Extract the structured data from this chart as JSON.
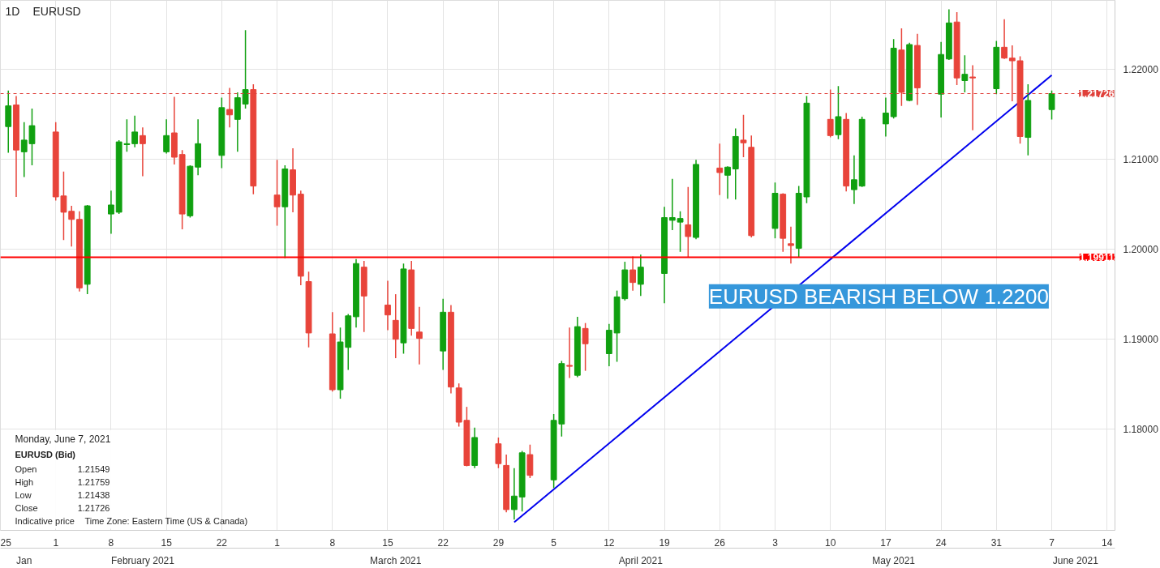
{
  "chart_data": {
    "type": "candlestick",
    "title": "EURUSD",
    "subtitle": "1D",
    "x": [
      "2021-01-26",
      "2021-01-27",
      "2021-01-28",
      "2021-01-29",
      "2021-02-01",
      "2021-02-02",
      "2021-02-03",
      "2021-02-04",
      "2021-02-05",
      "2021-02-08",
      "2021-02-09",
      "2021-02-10",
      "2021-02-11",
      "2021-02-12",
      "2021-02-15",
      "2021-02-16",
      "2021-02-17",
      "2021-02-18",
      "2021-02-19",
      "2021-02-22",
      "2021-02-23",
      "2021-02-24",
      "2021-02-25",
      "2021-02-26",
      "2021-03-01",
      "2021-03-02",
      "2021-03-03",
      "2021-03-04",
      "2021-03-05",
      "2021-03-08",
      "2021-03-09",
      "2021-03-10",
      "2021-03-11",
      "2021-03-12",
      "2021-03-15",
      "2021-03-16",
      "2021-03-17",
      "2021-03-18",
      "2021-03-19",
      "2021-03-22",
      "2021-03-23",
      "2021-03-24",
      "2021-03-25",
      "2021-03-26",
      "2021-03-29",
      "2021-03-30",
      "2021-03-31",
      "2021-04-01",
      "2021-04-02",
      "2021-04-05",
      "2021-04-06",
      "2021-04-07",
      "2021-04-08",
      "2021-04-09",
      "2021-04-12",
      "2021-04-13",
      "2021-04-14",
      "2021-04-15",
      "2021-04-16",
      "2021-04-19",
      "2021-04-20",
      "2021-04-21",
      "2021-04-22",
      "2021-04-23",
      "2021-04-26",
      "2021-04-27",
      "2021-04-28",
      "2021-04-29",
      "2021-04-30",
      "2021-05-03",
      "2021-05-04",
      "2021-05-05",
      "2021-05-06",
      "2021-05-07",
      "2021-05-10",
      "2021-05-11",
      "2021-05-12",
      "2021-05-13",
      "2021-05-14",
      "2021-05-17",
      "2021-05-18",
      "2021-05-19",
      "2021-05-20",
      "2021-05-21",
      "2021-05-24",
      "2021-05-25",
      "2021-05-26",
      "2021-05-27",
      "2021-05-28",
      "2021-05-31",
      "2021-06-01",
      "2021-06-02",
      "2021-06-03",
      "2021-06-04",
      "2021-06-07"
    ],
    "ohlc": [
      [
        1.2136,
        1.2176,
        1.2107,
        1.2159
      ],
      [
        1.216,
        1.217,
        1.2058,
        1.211
      ],
      [
        1.2108,
        1.2141,
        1.208,
        1.2121
      ],
      [
        1.2117,
        1.2156,
        1.2093,
        1.2137
      ],
      [
        1.213,
        1.2141,
        1.2054,
        1.2058
      ],
      [
        1.2059,
        1.2086,
        1.201,
        1.2041
      ],
      [
        1.2042,
        1.2048,
        1.2003,
        1.2033
      ],
      [
        1.2033,
        1.2042,
        1.1953,
        1.1957
      ],
      [
        1.1961,
        1.2049,
        1.195,
        1.2048
      ],
      [
        1.2039,
        1.2065,
        1.2017,
        1.2049
      ],
      [
        1.2041,
        1.2121,
        1.2039,
        1.2119
      ],
      [
        1.2116,
        1.2144,
        1.2108,
        1.2117
      ],
      [
        1.2117,
        1.2148,
        1.2113,
        1.213
      ],
      [
        1.2126,
        1.2135,
        1.2081,
        1.2117
      ],
      [
        1.2108,
        1.2144,
        1.2106,
        1.2126
      ],
      [
        1.2129,
        1.2169,
        1.2094,
        1.2102
      ],
      [
        1.2105,
        1.211,
        1.2022,
        1.2039
      ],
      [
        1.2037,
        1.2093,
        1.2035,
        1.2092
      ],
      [
        1.2091,
        1.2144,
        1.2082,
        1.2117
      ],
      [
        1.2104,
        1.2168,
        1.209,
        1.2157
      ],
      [
        1.2155,
        1.2179,
        1.2135,
        1.2149
      ],
      [
        1.2144,
        1.2174,
        1.2108,
        1.2168
      ],
      [
        1.2161,
        1.2243,
        1.2156,
        1.2177
      ],
      [
        1.2177,
        1.2183,
        1.2061,
        1.207
      ],
      [
        1.206,
        1.2099,
        1.2026,
        1.2047
      ],
      [
        1.2047,
        1.2093,
        1.199,
        1.2089
      ],
      [
        1.2088,
        1.2112,
        1.2041,
        1.206
      ],
      [
        1.2061,
        1.2065,
        1.196,
        1.197
      ],
      [
        1.1964,
        1.1975,
        1.1891,
        1.1907
      ],
      [
        1.1906,
        1.193,
        1.1842,
        1.1844
      ],
      [
        1.1844,
        1.1913,
        1.1834,
        1.1897
      ],
      [
        1.1891,
        1.1928,
        1.1866,
        1.1926
      ],
      [
        1.1925,
        1.1989,
        1.1913,
        1.1984
      ],
      [
        1.198,
        1.1987,
        1.1908,
        1.1948
      ],
      [
        1.1938,
        1.1965,
        1.191,
        1.1927
      ],
      [
        1.1921,
        1.195,
        1.1879,
        1.19
      ],
      [
        1.1896,
        1.1984,
        1.1884,
        1.1978
      ],
      [
        1.1977,
        1.1987,
        1.1904,
        1.1912
      ],
      [
        1.1908,
        1.1936,
        1.1872,
        1.1901
      ],
      [
        1.1887,
        1.1945,
        1.1866,
        1.193
      ],
      [
        1.193,
        1.1938,
        1.184,
        1.1847
      ],
      [
        1.1846,
        1.1851,
        1.1803,
        1.1808
      ],
      [
        1.181,
        1.1825,
        1.1759,
        1.176
      ],
      [
        1.176,
        1.1802,
        1.1757,
        1.1791
      ],
      [
        1.1784,
        1.1791,
        1.1757,
        1.1762
      ],
      [
        1.176,
        1.1772,
        1.1708,
        1.1711
      ],
      [
        1.1711,
        1.1757,
        1.17,
        1.1726
      ],
      [
        1.1725,
        1.1776,
        1.1709,
        1.1774
      ],
      [
        1.1772,
        1.1783,
        1.1746,
        1.1749
      ],
      [
        1.1744,
        1.1817,
        1.1735,
        1.181
      ],
      [
        1.1806,
        1.1876,
        1.1792,
        1.1873
      ],
      [
        1.1871,
        1.1913,
        1.1857,
        1.187
      ],
      [
        1.186,
        1.1925,
        1.1858,
        1.1914
      ],
      [
        1.1912,
        1.1918,
        1.1865,
        1.1895
      ],
      [
        1.1884,
        1.1917,
        1.187,
        1.191
      ],
      [
        1.1907,
        1.1954,
        1.1875,
        1.1947
      ],
      [
        1.1945,
        1.1986,
        1.1943,
        1.1977
      ],
      [
        1.1977,
        1.1992,
        1.1954,
        1.1963
      ],
      [
        1.1961,
        1.1994,
        1.1948,
        1.198
      ],
      [
        1.1973,
        1.2047,
        1.194,
        1.2035
      ],
      [
        1.2032,
        1.2078,
        1.2021,
        1.2035
      ],
      [
        1.203,
        1.2042,
        1.1997,
        1.2034
      ],
      [
        1.2027,
        1.2069,
        1.1991,
        1.2014
      ],
      [
        1.2013,
        1.2099,
        1.2011,
        1.2094
      ],
      [
        1.209,
        1.2117,
        1.206,
        1.2085
      ],
      [
        1.2082,
        1.2092,
        1.2056,
        1.2091
      ],
      [
        1.2089,
        1.2134,
        1.2055,
        1.2125
      ],
      [
        1.2121,
        1.2149,
        1.2102,
        1.2118
      ],
      [
        1.2113,
        1.2126,
        1.2013,
        1.2015
      ],
      [
        1.2023,
        1.2074,
        1.2012,
        1.2062
      ],
      [
        1.2061,
        1.2062,
        1.1997,
        1.2012
      ],
      [
        1.2006,
        1.2025,
        1.1984,
        1.2004
      ],
      [
        1.2001,
        1.207,
        1.1991,
        1.2062
      ],
      [
        1.2058,
        1.217,
        1.2051,
        1.2162
      ],
      [
        1.2144,
        1.2177,
        1.2124,
        1.2126
      ],
      [
        1.2127,
        1.2181,
        1.2122,
        1.2147
      ],
      [
        1.2144,
        1.2151,
        1.2064,
        1.207
      ],
      [
        1.2066,
        1.2104,
        1.205,
        1.2077
      ],
      [
        1.207,
        1.2147,
        1.2069,
        1.2144
      ],
      [
        1.2139,
        1.2168,
        1.2125,
        1.2151
      ],
      [
        1.2147,
        1.2233,
        1.2145,
        1.2223
      ],
      [
        1.2221,
        1.2245,
        1.2159,
        1.2174
      ],
      [
        1.2165,
        1.2229,
        1.2164,
        1.2227
      ],
      [
        1.2226,
        1.2239,
        1.216,
        1.2179
      ],
      [
        1.2172,
        1.223,
        1.2146,
        1.2216
      ],
      [
        1.2211,
        1.2266,
        1.221,
        1.2251
      ],
      [
        1.2252,
        1.2263,
        1.2182,
        1.219
      ],
      [
        1.2187,
        1.2215,
        1.2174,
        1.2194
      ],
      [
        1.2191,
        1.2204,
        1.2132,
        1.219
      ],
      [
        1.2178,
        1.2231,
        1.2172,
        1.2224
      ],
      [
        1.2224,
        1.2255,
        1.2211,
        1.2212
      ],
      [
        1.2212,
        1.2226,
        1.2164,
        1.2209
      ],
      [
        1.2209,
        1.2214,
        1.2117,
        1.2125
      ],
      [
        1.2124,
        1.2183,
        1.2104,
        1.2165
      ],
      [
        1.21549,
        1.21759,
        1.21438,
        1.21726
      ]
    ],
    "colors": [
      "#10a010",
      "#e8443a",
      "#10a010",
      "#10a010",
      "#e8443a",
      "#e8443a",
      "#e8443a",
      "#e8443a",
      "#10a010",
      "#10a010",
      "#10a010",
      "#10a010",
      "#10a010",
      "#e8443a",
      "#10a010",
      "#e8443a",
      "#e8443a",
      "#10a010",
      "#10a010",
      "#10a010",
      "#e8443a",
      "#10a010",
      "#10a010",
      "#e8443a",
      "#e8443a",
      "#10a010",
      "#e8443a",
      "#e8443a",
      "#e8443a",
      "#e8443a",
      "#10a010",
      "#10a010",
      "#10a010",
      "#e8443a",
      "#e8443a",
      "#e8443a",
      "#10a010",
      "#e8443a",
      "#e8443a",
      "#10a010",
      "#e8443a",
      "#e8443a",
      "#e8443a",
      "#10a010",
      "#e8443a",
      "#e8443a",
      "#10a010",
      "#10a010",
      "#e8443a",
      "#10a010",
      "#10a010",
      "#e8443a",
      "#10a010",
      "#e8443a",
      "#10a010",
      "#10a010",
      "#10a010",
      "#e8443a",
      "#10a010",
      "#10a010",
      "#10a010",
      "#10a010",
      "#e8443a",
      "#10a010",
      "#e8443a",
      "#10a010",
      "#10a010",
      "#e8443a",
      "#e8443a",
      "#10a010",
      "#e8443a",
      "#e8443a",
      "#10a010",
      "#10a010",
      "#e8443a",
      "#10a010",
      "#e8443a",
      "#10a010",
      "#10a010",
      "#10a010",
      "#10a010",
      "#e8443a",
      "#10a010",
      "#e8443a",
      "#10a010",
      "#10a010",
      "#e8443a",
      "#10a010",
      "#e8443a",
      "#10a010",
      "#e8443a",
      "#e8443a",
      "#e8443a",
      "#10a010",
      "#10a010"
    ],
    "series": [
      {
        "type": "line",
        "color": "#0000ee",
        "x": [
          "2021-03-31",
          "2021-06-07"
        ],
        "values": [
          1.1697,
          1.2193
        ]
      }
    ],
    "ref_lines": [
      {
        "axis": "y",
        "value": 1.21726,
        "label": "1.21726",
        "color": "#e0403a",
        "line_style": "dashed"
      },
      {
        "axis": "y",
        "value": 1.19911,
        "label": "1.19911",
        "color": "#ff0000",
        "line_style": "solid"
      }
    ],
    "annotations": [
      "Monday, June 7, 2021",
      "EURUSD (Bid)",
      "Open",
      "1.21549",
      "High",
      "1.21759",
      "Low",
      "1.21438",
      "Close",
      "1.21726",
      "Indicative price",
      "Time Zone: Eastern Time (US & Canada)",
      "EURUSD BEARISH BELOW 1.2200"
    ],
    "xlim": [
      "2021-01-25",
      "2021-06-15"
    ],
    "xticks": [
      {
        "value": "2021-01-25",
        "label": "25"
      },
      {
        "value": "2021-02-01",
        "label": "1"
      },
      {
        "value": "2021-02-08",
        "label": "8"
      },
      {
        "value": "2021-02-15",
        "label": "15"
      },
      {
        "value": "2021-02-22",
        "label": "22"
      },
      {
        "value": "2021-03-01",
        "label": "1"
      },
      {
        "value": "2021-03-08",
        "label": "8"
      },
      {
        "value": "2021-03-15",
        "label": "15"
      },
      {
        "value": "2021-03-22",
        "label": "22"
      },
      {
        "value": "2021-03-29",
        "label": "29"
      },
      {
        "value": "2021-04-05",
        "label": "5"
      },
      {
        "value": "2021-04-12",
        "label": "12"
      },
      {
        "value": "2021-04-19",
        "label": "19"
      },
      {
        "value": "2021-04-26",
        "label": "26"
      },
      {
        "value": "2021-05-03",
        "label": "3"
      },
      {
        "value": "2021-05-10",
        "label": "10"
      },
      {
        "value": "2021-05-17",
        "label": "17"
      },
      {
        "value": "2021-05-24",
        "label": "24"
      },
      {
        "value": "2021-05-31",
        "label": "31"
      },
      {
        "value": "2021-06-07",
        "label": "7"
      },
      {
        "value": "2021-06-14",
        "label": "14"
      }
    ],
    "x2lim": [
      "2021-01-25",
      "2021-06-15"
    ],
    "x2ticks": [
      {
        "value": "2021-01-28",
        "label": "Jan"
      },
      {
        "value": "2021-02-12",
        "label": "February 2021"
      },
      {
        "value": "2021-03-16",
        "label": "March 2021"
      },
      {
        "value": "2021-04-16",
        "label": "April 2021"
      },
      {
        "value": "2021-05-18",
        "label": "May 2021"
      },
      {
        "value": "2021-06-10",
        "label": "June 2021"
      }
    ],
    "ylim": [
      1.1688,
      1.2276
    ],
    "yticks": [
      {
        "value": 1.18,
        "label": "1.18000"
      },
      {
        "value": 1.19,
        "label": "1.19000"
      },
      {
        "value": 1.2,
        "label": "1.20000"
      },
      {
        "value": 1.21,
        "label": "1.21000"
      },
      {
        "value": 1.22,
        "label": "1.22000"
      }
    ],
    "grid": true
  }
}
